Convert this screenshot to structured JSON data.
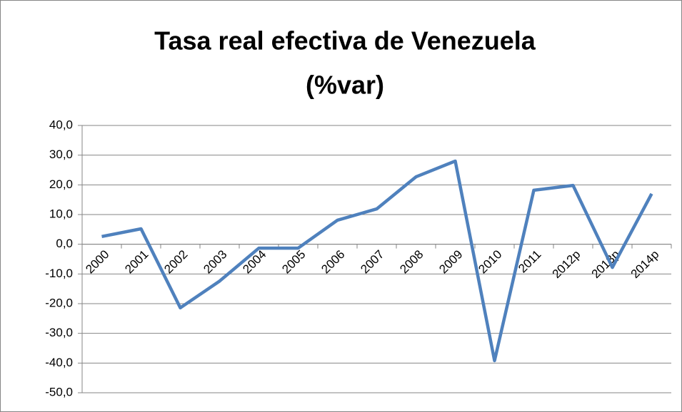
{
  "chart_data": {
    "type": "line",
    "title": [
      "Tasa real efectiva de Venezuela",
      "(%var)"
    ],
    "categories": [
      "2000",
      "2001",
      "2002",
      "2003",
      "2004",
      "2005",
      "2006",
      "2007",
      "2008",
      "2009",
      "2010",
      "2011",
      "2012p",
      "2013p",
      "2014p"
    ],
    "series": [
      {
        "color": "#4f81bd",
        "values": [
          2.6,
          5.2,
          -21.4,
          -12.4,
          -1.3,
          -1.3,
          8.1,
          11.9,
          22.7,
          28.0,
          -39.2,
          18.2,
          19.8,
          -7.8,
          17.0
        ]
      }
    ],
    "ylim": [
      -50,
      40
    ],
    "yticks": [
      {
        "value": -50,
        "label": "-50,0"
      },
      {
        "value": -40,
        "label": "-40,0"
      },
      {
        "value": -30,
        "label": "-30,0"
      },
      {
        "value": -20,
        "label": "-20,0"
      },
      {
        "value": -10,
        "label": "-10,0"
      },
      {
        "value": 0,
        "label": "0,0"
      },
      {
        "value": 10,
        "label": "10,0"
      },
      {
        "value": 20,
        "label": "20,0"
      },
      {
        "value": 30,
        "label": "30,0"
      },
      {
        "value": 40,
        "label": "40,0"
      }
    ],
    "grid": true
  }
}
